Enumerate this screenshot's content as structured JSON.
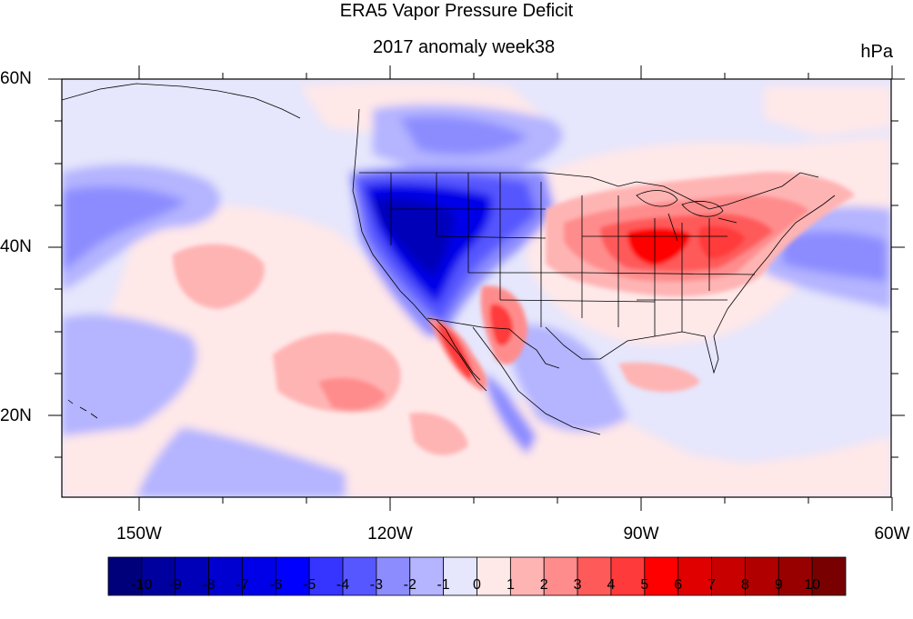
{
  "title": "ERA5 Vapor Pressure Deficit",
  "subtitle": "2017 anomaly week38",
  "units": "hPa",
  "lat_labels": [
    "60N",
    "40N",
    "20N"
  ],
  "lon_labels": [
    "150W",
    "120W",
    "90W",
    "60W"
  ],
  "colorbar": {
    "labels": [
      "-10",
      "-9",
      "-8",
      "-7",
      "-6",
      "-5",
      "-4",
      "-3",
      "-2",
      "-1",
      "0",
      "1",
      "2",
      "3",
      "4",
      "5",
      "6",
      "7",
      "8",
      "9",
      "10"
    ],
    "colors": [
      "#00007a",
      "#00009e",
      "#0000b8",
      "#0000d0",
      "#0000e8",
      "#0000ff",
      "#3535ff",
      "#5757ff",
      "#8c8cff",
      "#b4b4ff",
      "#e6e6fc",
      "#ffe8e8",
      "#ffb4b4",
      "#ff8c8c",
      "#ff5a5a",
      "#ff3a3a",
      "#ff0000",
      "#e00000",
      "#c80000",
      "#b00000",
      "#980000",
      "#780000"
    ]
  },
  "palette": {
    "neutral_neg": "#e6e6fc",
    "neutral_pos": "#ffe8e8",
    "land_outline": "#000000"
  }
}
